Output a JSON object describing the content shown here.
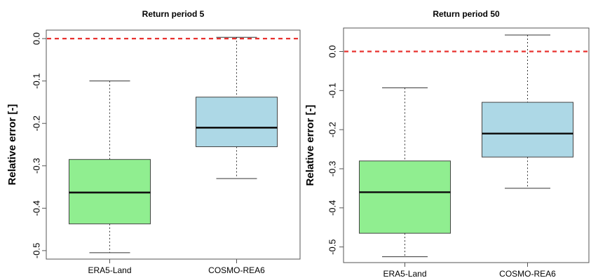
{
  "chart_data": [
    {
      "type": "boxplot",
      "title": "Return period  5",
      "xlabel": "",
      "ylabel": "Relative error [-]",
      "ylim": [
        -0.52,
        0.02
      ],
      "yticks": [
        "0.0",
        "-0.1",
        "-0.2",
        "-0.3",
        "-0.4",
        "-0.5"
      ],
      "reference_line": {
        "y": 0.0,
        "color": "#e8312f",
        "style": "dashed"
      },
      "grid": false,
      "categories": [
        "ERA5-Land",
        "COSMO-REA6"
      ],
      "boxes": [
        {
          "name": "ERA5-Land",
          "whisker_low": -0.505,
          "q1": -0.437,
          "median": -0.363,
          "q3": -0.285,
          "whisker_high": -0.1,
          "fill": "#90ee90"
        },
        {
          "name": "COSMO-REA6",
          "whisker_low": -0.33,
          "q1": -0.255,
          "median": -0.21,
          "q3": -0.138,
          "whisker_high": 0.003,
          "fill": "#add8e6"
        }
      ]
    },
    {
      "type": "boxplot",
      "title": "Return period  50",
      "xlabel": "",
      "ylabel": "Relative error [-]",
      "ylim": [
        -0.54,
        0.06
      ],
      "yticks": [
        "0.0",
        "-0.1",
        "-0.2",
        "-0.3",
        "-0.4",
        "-0.5"
      ],
      "reference_line": {
        "y": 0.0,
        "color": "#e8312f",
        "style": "dashed"
      },
      "grid": false,
      "categories": [
        "ERA5-Land",
        "COSMO-REA6"
      ],
      "boxes": [
        {
          "name": "ERA5-Land",
          "whisker_low": -0.525,
          "q1": -0.465,
          "median": -0.36,
          "q3": -0.28,
          "whisker_high": -0.093,
          "fill": "#90ee90"
        },
        {
          "name": "COSMO-REA6",
          "whisker_low": -0.35,
          "q1": -0.27,
          "median": -0.21,
          "q3": -0.13,
          "whisker_high": 0.042,
          "fill": "#add8e6"
        }
      ]
    }
  ]
}
